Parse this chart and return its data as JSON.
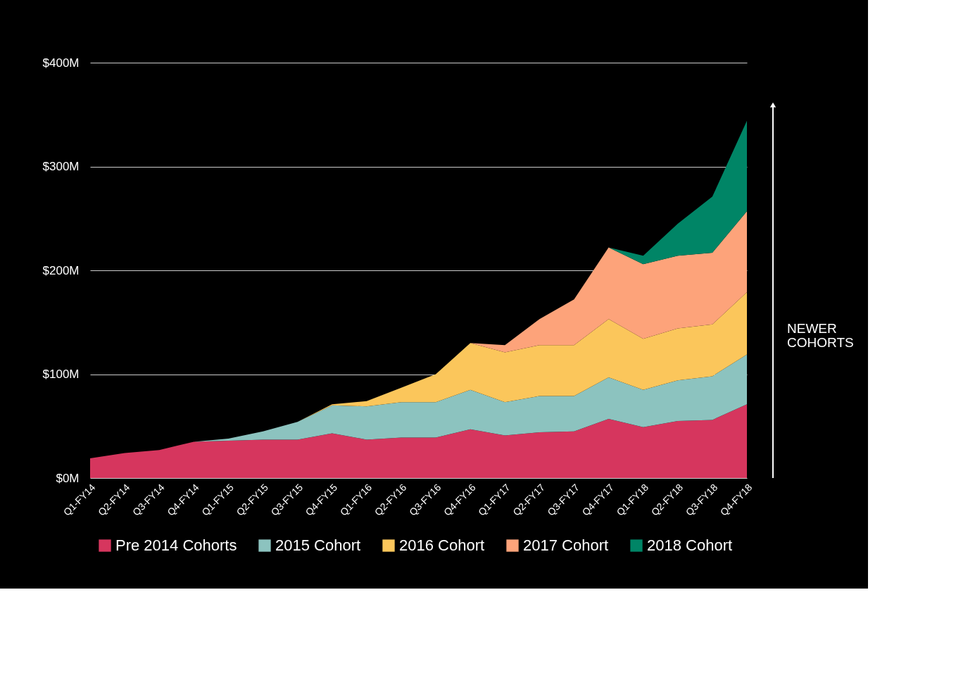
{
  "chart_data": {
    "type": "area",
    "stacked": true,
    "categories": [
      "Q1-FY14",
      "Q2-FY14",
      "Q3-FY14",
      "Q4-FY14",
      "Q1-FY15",
      "Q2-FY15",
      "Q3-FY15",
      "Q4-FY15",
      "Q1-FY16",
      "Q2-FY16",
      "Q3-FY16",
      "Q4-FY16",
      "Q1-FY17",
      "Q2-FY17",
      "Q3-FY17",
      "Q4-FY17",
      "Q1-FY18",
      "Q2-FY18",
      "Q3-FY18",
      "Q4-FY18"
    ],
    "series": [
      {
        "name": "Pre 2014 Cohorts",
        "color": "#d6365e",
        "values": [
          19,
          24,
          27,
          35,
          36,
          37,
          37,
          43,
          37,
          39,
          39,
          47,
          41,
          44,
          45,
          57,
          49,
          55,
          56,
          71
        ]
      },
      {
        "name": "2015 Cohort",
        "color": "#8cc3bf",
        "values": [
          0,
          0,
          0,
          0,
          2,
          8,
          17,
          27,
          32,
          34,
          34,
          38,
          32,
          35,
          34,
          40,
          36,
          39,
          42,
          48
        ]
      },
      {
        "name": "2016 Cohort",
        "color": "#fbc65b",
        "values": [
          0,
          0,
          0,
          0,
          0,
          0,
          0,
          1,
          5,
          14,
          27,
          45,
          48,
          49,
          49,
          56,
          49,
          50,
          50,
          60
        ]
      },
      {
        "name": "2017 Cohort",
        "color": "#fda37a",
        "values": [
          0,
          0,
          0,
          0,
          0,
          0,
          0,
          0,
          0,
          0,
          0,
          0,
          7,
          25,
          44,
          69,
          72,
          70,
          69,
          78
        ]
      },
      {
        "name": "2018 Cohort",
        "color": "#008566",
        "values": [
          0,
          0,
          0,
          0,
          0,
          0,
          0,
          0,
          0,
          0,
          0,
          0,
          0,
          0,
          0,
          0,
          8,
          31,
          54,
          87
        ]
      }
    ],
    "ylim": [
      0,
      400
    ],
    "yticks": [
      {
        "value": 0,
        "label": "$0M"
      },
      {
        "value": 100,
        "label": "$100M"
      },
      {
        "value": 200,
        "label": "$200M"
      },
      {
        "value": 300,
        "label": "$300M"
      },
      {
        "value": 400,
        "label": "$400M"
      }
    ],
    "grid": "y",
    "legend": "bottom",
    "annotations": [
      "NEWER COHORTS"
    ]
  }
}
